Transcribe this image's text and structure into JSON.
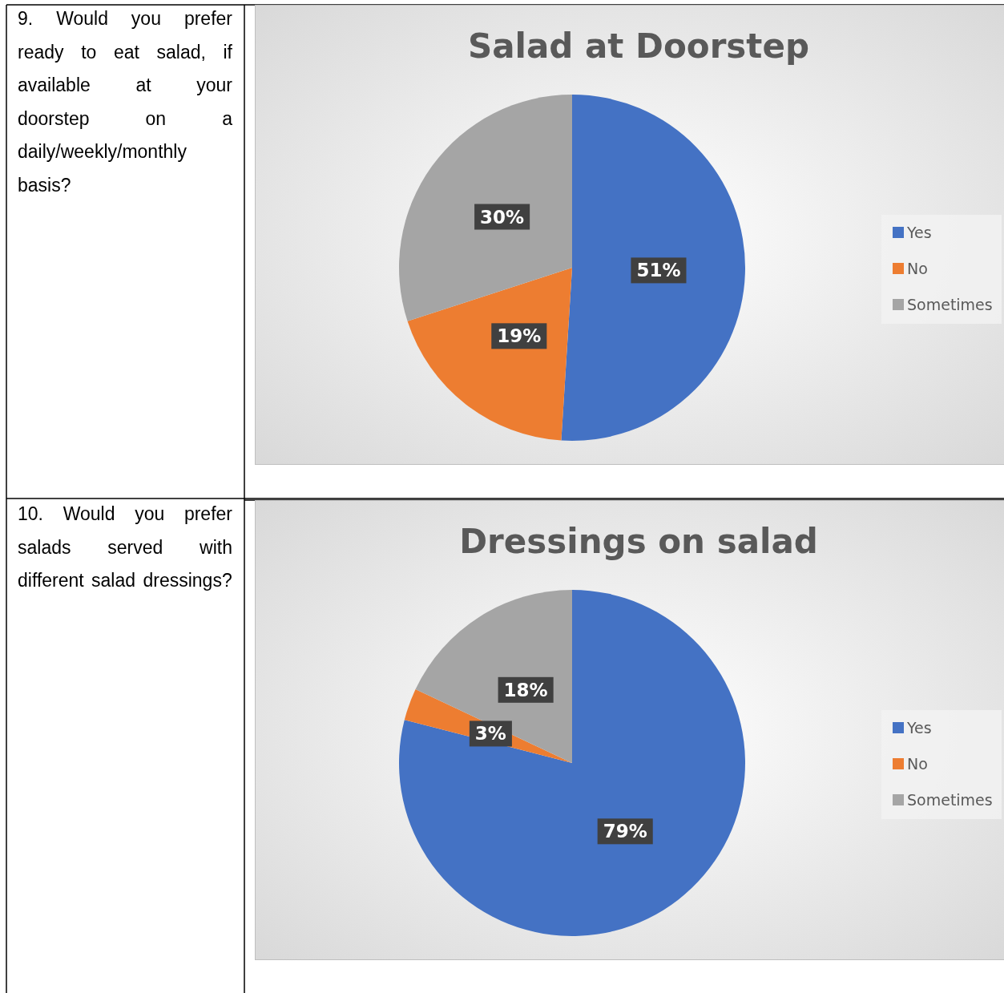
{
  "chart_data": [
    {
      "type": "pie",
      "title": "Salad at Doorstep",
      "annotations": [
        "9. Would you prefer ready to eat salad, if available at your doorstep on a daily/weekly/monthly basis?"
      ],
      "categories": [
        "Yes",
        "No",
        "Sometimes"
      ],
      "values": [
        51,
        19,
        30
      ],
      "value_labels": [
        "51%",
        "19%",
        "30%"
      ],
      "colors": [
        "#4472c4",
        "#ed7d31",
        "#a5a5a5"
      ],
      "legend": "right"
    },
    {
      "type": "pie",
      "title": "Dressings on salad",
      "annotations": [
        "10. Would you prefer salads served with different salad dressings?"
      ],
      "categories": [
        "Yes",
        "No",
        "Sometimes"
      ],
      "values": [
        79,
        3,
        18
      ],
      "value_labels": [
        "79%",
        "3%",
        "18%"
      ],
      "colors": [
        "#4472c4",
        "#ed7d31",
        "#a5a5a5"
      ],
      "legend": "right"
    }
  ]
}
